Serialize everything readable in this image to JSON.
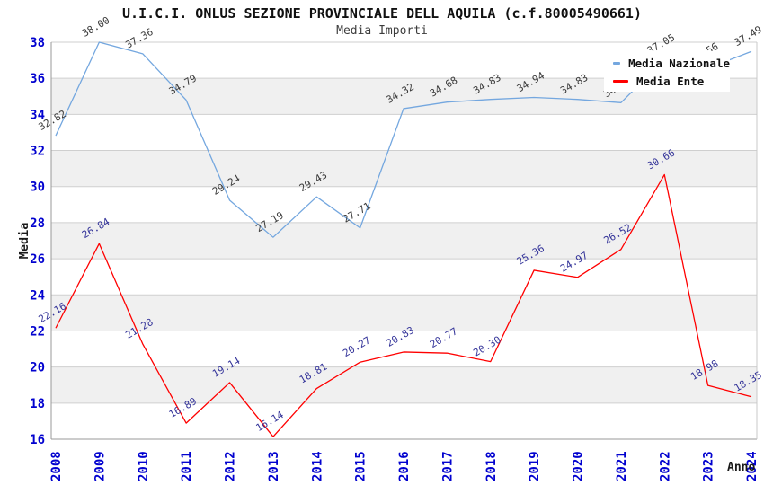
{
  "chart_data": {
    "type": "line",
    "title": "U.I.C.I. ONLUS SEZIONE PROVINCIALE DELL AQUILA (c.f.80005490661)",
    "subtitle": "Media Importi",
    "xlabel": "Anno",
    "ylabel": "Media",
    "x_categories": [
      "2008",
      "2009",
      "2010",
      "2011",
      "2012",
      "2013",
      "2014",
      "2015",
      "2016",
      "2017",
      "2018",
      "2019",
      "2020",
      "2021",
      "2022",
      "2023",
      "2024"
    ],
    "ylim": [
      16,
      38
    ],
    "ytick_step": 2,
    "grid": "horizontal-gridlines-with-alternating-bands",
    "legend_position": "top-right",
    "value_label_decimals": 2,
    "colors": {
      "background": "#FFFFFF",
      "band_fill": "#F0F0F0",
      "gridline": "#CFCFCF",
      "axis_line": "#999999",
      "right_border": "#C8C8C8",
      "tick_label": "#0202CF"
    },
    "series": [
      {
        "name": "Media Nazionale",
        "color": "#74A7DF",
        "label_color": "#3A3A3A",
        "values": [
          32.82,
          38.0,
          37.36,
          34.79,
          29.24,
          27.19,
          29.43,
          27.71,
          34.32,
          34.68,
          34.83,
          34.94,
          34.83,
          34.65,
          37.05,
          36.56,
          37.49
        ]
      },
      {
        "name": "Media Ente",
        "color": "#FF0000",
        "label_color": "#333399",
        "values": [
          22.16,
          26.84,
          21.28,
          16.89,
          19.14,
          16.14,
          18.81,
          20.27,
          20.83,
          20.77,
          20.3,
          25.36,
          24.97,
          26.52,
          30.66,
          18.98,
          18.35
        ]
      }
    ]
  }
}
